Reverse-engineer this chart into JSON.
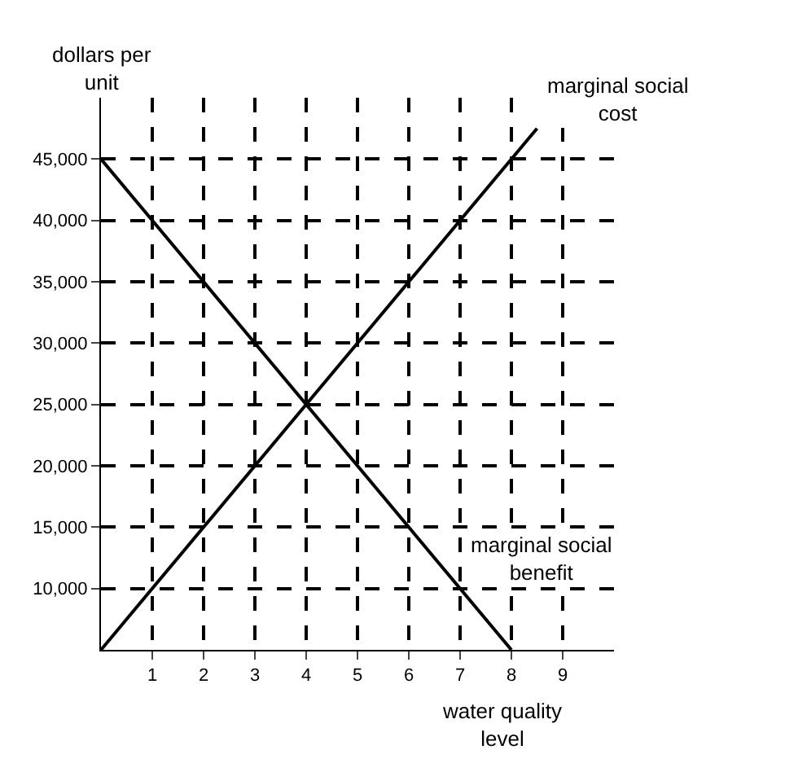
{
  "chart_data": {
    "type": "line",
    "xlabel": "water quality level",
    "ylabel": "dollars per unit",
    "series": [
      {
        "x": [
          0,
          8.5
        ],
        "values": [
          5000,
          47500
        ],
        "color": "#000000"
      },
      {
        "x": [
          0,
          8
        ],
        "values": [
          45000,
          5000
        ],
        "color": "#000000"
      }
    ],
    "annotations": [
      {
        "text": "marginal social cost",
        "x": 8.5,
        "y": 47500
      },
      {
        "text": "marginal social benefit",
        "x": 7,
        "y": 10000
      }
    ],
    "xlim": [
      0,
      10
    ],
    "xticks": [
      1,
      2,
      3,
      4,
      5,
      6,
      7,
      8,
      9
    ],
    "ylim": [
      5000,
      50000
    ],
    "yticks": [
      {
        "value": 10000,
        "label": "10,000"
      },
      {
        "value": 15000,
        "label": "15,000"
      },
      {
        "value": 20000,
        "label": "20,000"
      },
      {
        "value": 25000,
        "label": "25,000"
      },
      {
        "value": 30000,
        "label": "30,000"
      },
      {
        "value": 35000,
        "label": "35,000"
      },
      {
        "value": 40000,
        "label": "40,000"
      },
      {
        "value": 45000,
        "label": "45,000"
      }
    ],
    "grid": true,
    "marker": "none",
    "line_style": "solid"
  }
}
